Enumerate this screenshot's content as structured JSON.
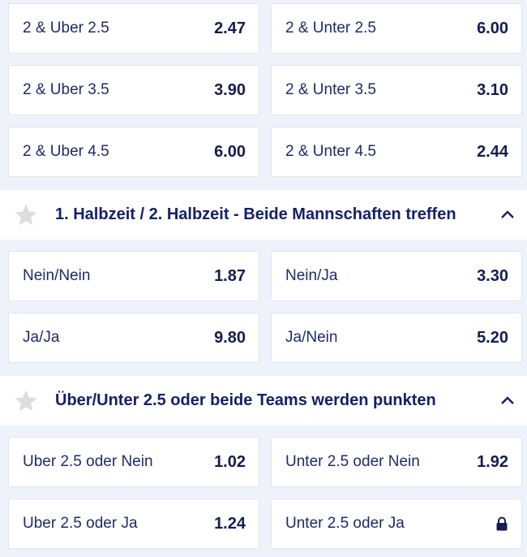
{
  "section_top": {
    "outcomes": [
      {
        "label": "2 & Uber 2.5",
        "odds": "2.47"
      },
      {
        "label": "2 & Unter 2.5",
        "odds": "6.00"
      },
      {
        "label": "2 & Uber 3.5",
        "odds": "3.90"
      },
      {
        "label": "2 & Unter 3.5",
        "odds": "3.10"
      },
      {
        "label": "2 & Uber 4.5",
        "odds": "6.00"
      },
      {
        "label": "2 & Unter 4.5",
        "odds": "2.44"
      }
    ]
  },
  "market_btts_halves": {
    "title": "1. Halbzeit / 2. Halbzeit - Beide Mannschaften treffen",
    "icon": "star-icon",
    "collapse_icon": "chevron-up-icon",
    "outcomes": [
      {
        "label": "Nein/Nein",
        "odds": "1.87"
      },
      {
        "label": "Nein/Ja",
        "odds": "3.30"
      },
      {
        "label": "Ja/Ja",
        "odds": "9.80"
      },
      {
        "label": "Ja/Nein",
        "odds": "5.20"
      }
    ]
  },
  "market_ou_btts": {
    "title": "Über/Unter 2.5 oder beide Teams werden punkten",
    "icon": "star-icon",
    "collapse_icon": "chevron-up-icon",
    "outcomes": [
      {
        "label": "Uber 2.5 oder Nein",
        "odds": "1.02"
      },
      {
        "label": "Unter 2.5 oder Nein",
        "odds": "1.92"
      },
      {
        "label": "Uber 2.5 oder Ja",
        "odds": "1.24"
      },
      {
        "label": "Unter 2.5 oder Ja",
        "odds": null,
        "locked": true
      }
    ]
  },
  "colors": {
    "background": "#eef3fb",
    "text": "#1b2660",
    "star": "#dddddd"
  }
}
